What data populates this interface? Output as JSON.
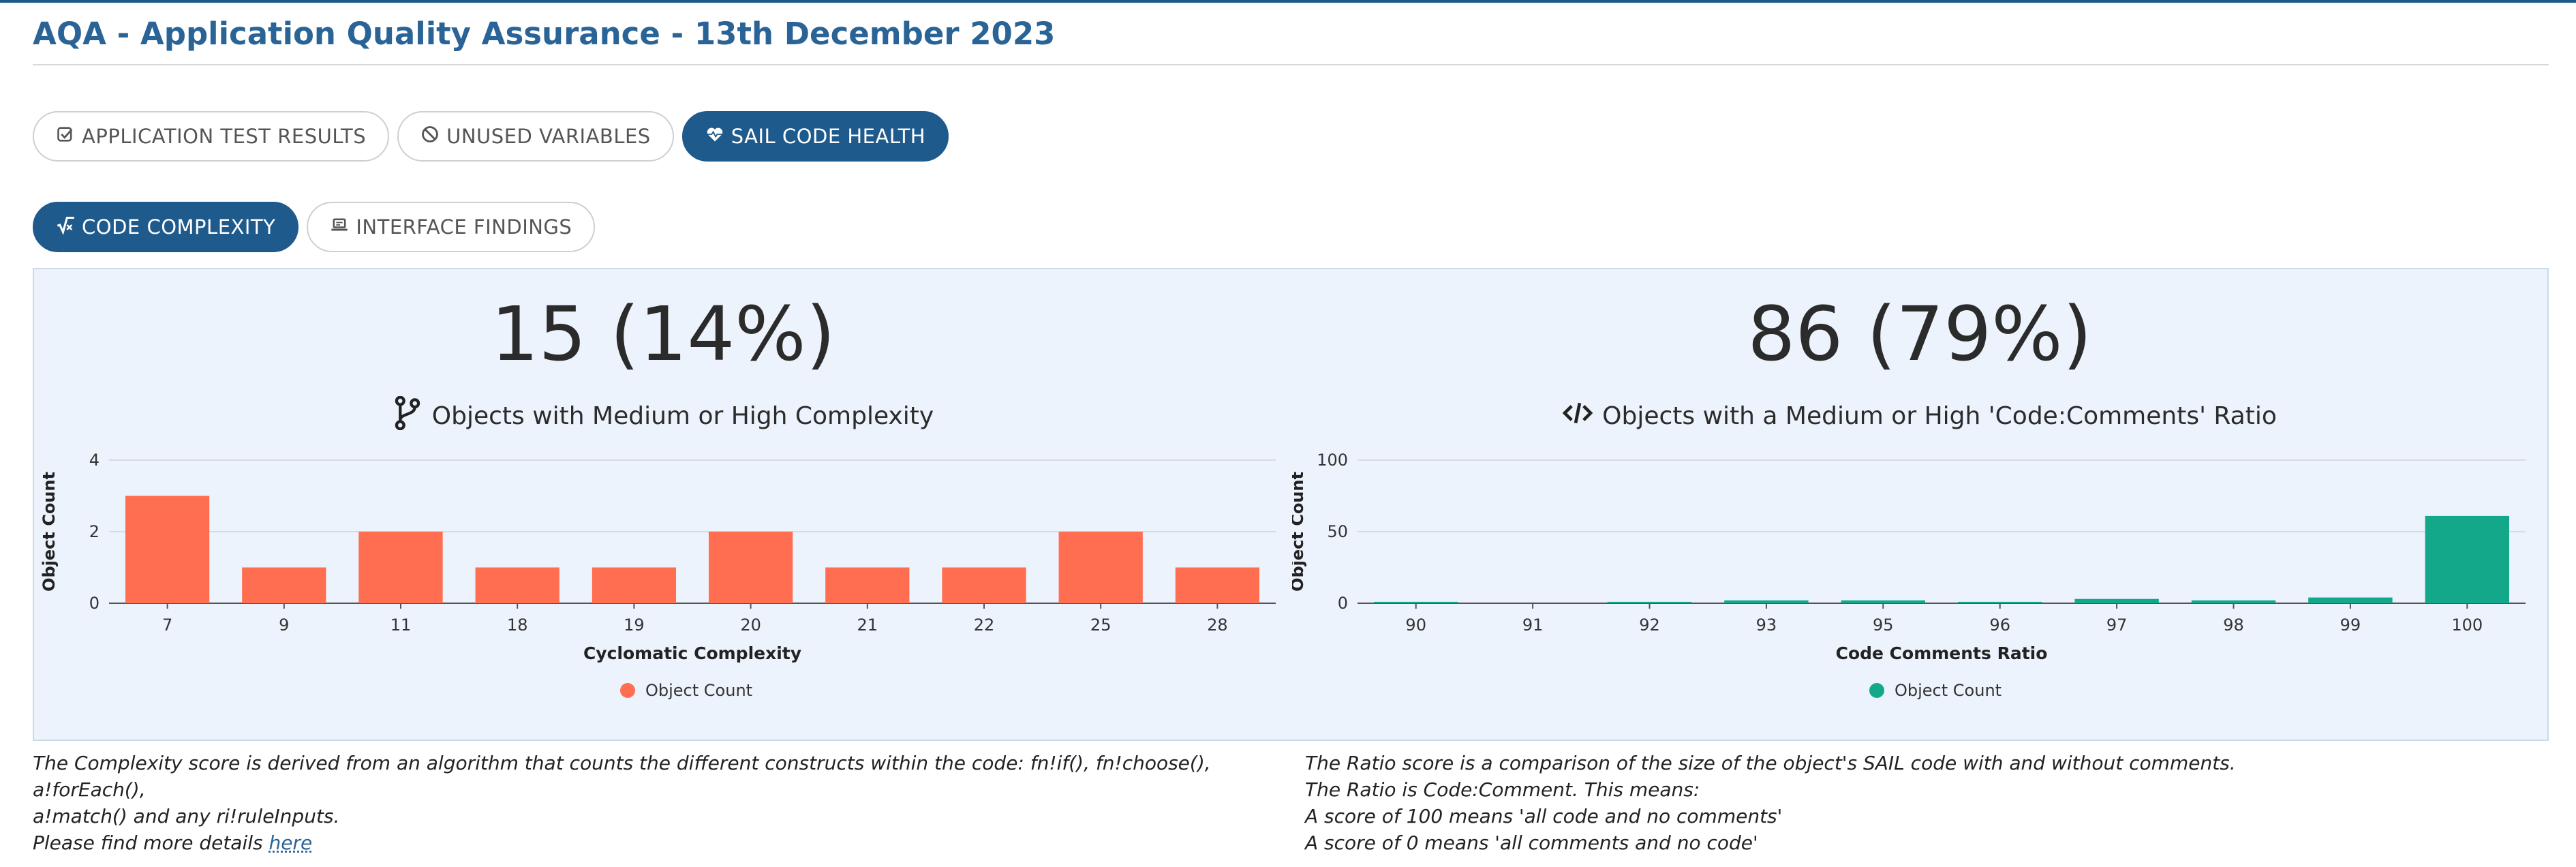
{
  "header": {
    "title": "AQA - Application Quality Assurance - 13th December 2023"
  },
  "main_tabs": [
    {
      "label": "APPLICATION TEST RESULTS",
      "icon": "checkbox-icon",
      "active": false
    },
    {
      "label": "UNUSED VARIABLES",
      "icon": "ban-icon",
      "active": false
    },
    {
      "label": "SAIL CODE HEALTH",
      "icon": "heart-pulse-icon",
      "active": true
    }
  ],
  "sub_tabs": [
    {
      "label": "CODE COMPLEXITY",
      "icon": "square-root-icon",
      "active": true
    },
    {
      "label": "INTERFACE FINDINGS",
      "icon": "laptop-icon",
      "active": false
    }
  ],
  "complexity": {
    "stat": "15 (14%)",
    "subtitle": "Objects with Medium or High Complexity",
    "note_line1": "The Complexity score is derived from an algorithm that counts the different constructs within the code: fn!if(), fn!choose(), a!forEach(),",
    "note_line2": "a!match() and any ri!ruleInputs.",
    "note_line3_prefix": "Please find more details ",
    "note_link": "here"
  },
  "ratio": {
    "stat": "86 (79%)",
    "subtitle": "Objects with a Medium or High 'Code:Comments' Ratio",
    "note_line1": "The Ratio score is a comparison of the size of the object's SAIL code with and without comments.",
    "note_line2": "The Ratio is Code:Comment. This means:",
    "note_line3": "A score of 100 means 'all code and no comments'",
    "note_line4": "A score of 0 means 'all comments and no code'"
  },
  "chart_data": [
    {
      "type": "bar",
      "categories": [
        "7",
        "9",
        "11",
        "18",
        "19",
        "20",
        "21",
        "22",
        "25",
        "28"
      ],
      "series": [
        {
          "name": "Object Count",
          "values": [
            3,
            1,
            2,
            1,
            1,
            2,
            1,
            1,
            2,
            1
          ],
          "color": "#ff6e50"
        }
      ],
      "xlabel": "Cyclomatic Complexity",
      "ylabel": "Object Count",
      "ylim": [
        0,
        4
      ],
      "yticks": [
        0,
        2,
        4
      ],
      "grid": true,
      "legend": "bottom-center"
    },
    {
      "type": "bar",
      "categories": [
        "90",
        "91",
        "92",
        "93",
        "95",
        "96",
        "97",
        "98",
        "99",
        "100"
      ],
      "series": [
        {
          "name": "Object Count",
          "values": [
            1,
            0,
            1,
            2,
            2,
            1,
            3,
            2,
            4,
            61
          ],
          "color": "#13a88a"
        }
      ],
      "xlabel": "Code Comments Ratio",
      "ylabel": "Object Count",
      "ylim": [
        0,
        100
      ],
      "yticks": [
        0,
        50,
        100
      ],
      "grid": true,
      "legend": "bottom-center"
    }
  ]
}
